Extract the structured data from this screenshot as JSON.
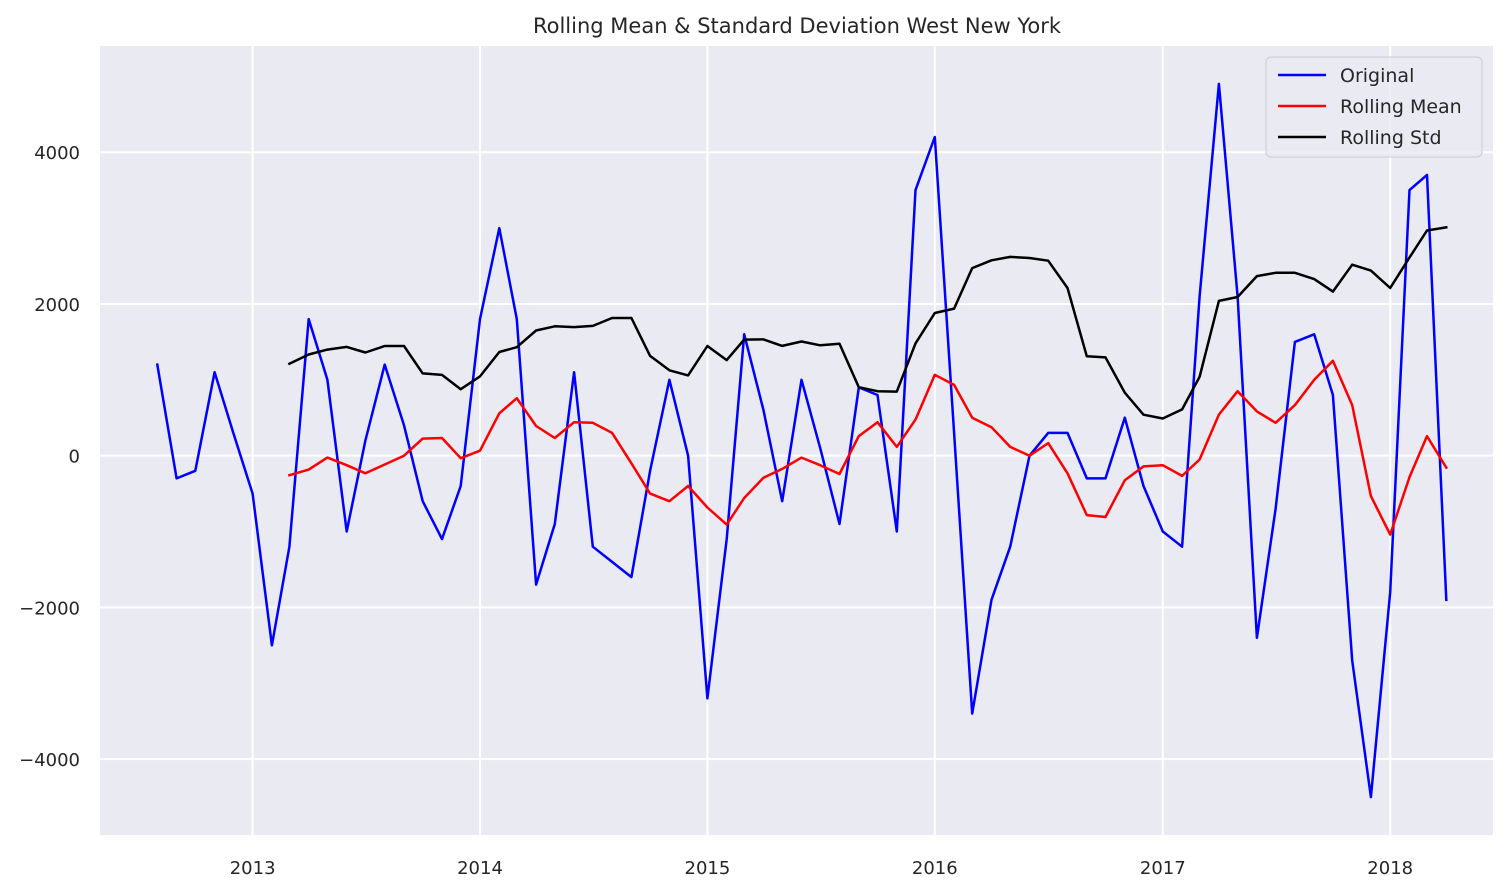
{
  "chart_data": {
    "type": "line",
    "title": "Rolling Mean & Standard Deviation West New York",
    "xlabel": "",
    "ylabel": "",
    "x_start": "2012-08",
    "x_step": "month",
    "xlim": [
      "2012-05-01",
      "2018-06-15"
    ],
    "ylim": [
      -5000,
      5400
    ],
    "x_ticks": [
      "2013",
      "2014",
      "2015",
      "2016",
      "2017",
      "2018"
    ],
    "y_ticks": [
      -4000,
      -2000,
      0,
      2000,
      4000
    ],
    "y_tick_labels": [
      "−4000",
      "−2000",
      "0",
      "2000",
      "4000"
    ],
    "grid": true,
    "legend_position": "top-right",
    "series": [
      {
        "name": "Original",
        "color": "#0000ff",
        "values": [
          1200,
          -300,
          -200,
          1100,
          300,
          -500,
          -2500,
          -1200,
          1800,
          1000,
          -1000,
          200,
          1200,
          400,
          -600,
          -1100,
          -400,
          1800,
          3000,
          1800,
          -1700,
          -900,
          1100,
          -1200,
          -1400,
          -1600,
          -200,
          1000,
          0,
          -3200,
          -1100,
          1600,
          600,
          -600,
          1000,
          100,
          -900,
          900,
          800,
          -1000,
          3500,
          4200,
          300,
          -3400,
          -1900,
          -1200,
          0,
          300,
          300,
          -300,
          -300,
          500,
          -400,
          -1000,
          -1200,
          2100,
          4900,
          2100,
          -2400,
          -700,
          1500,
          1600,
          800,
          -2700,
          -4500,
          -1800,
          3500,
          3700,
          -1900
        ]
      },
      {
        "name": "Rolling Mean",
        "color": "#ff0000",
        "values": [
          null,
          null,
          null,
          null,
          null,
          null,
          null,
          -258,
          -183,
          -25,
          -125,
          -233,
          -116,
          0,
          225,
          233,
          -33,
          66,
          558,
          758,
          391,
          233,
          441,
          433,
          300,
          -100,
          -500,
          -600,
          -400,
          -683,
          -908,
          -558,
          -291,
          -175,
          -25,
          -125,
          -241,
          258,
          441,
          116,
          475,
          1066,
          933,
          500,
          375,
          116,
          0,
          166,
          -233,
          -783,
          -808,
          -325,
          -141,
          -125,
          -266,
          -50,
          541,
          850,
          583,
          433,
          666,
          1000,
          1250,
          666,
          -533,
          -1041,
          -283,
          258,
          -158
        ]
      },
      {
        "name": "Rolling Std",
        "color": "#000000",
        "values": [
          null,
          null,
          null,
          null,
          null,
          null,
          null,
          1212,
          1333,
          1398,
          1434,
          1360,
          1445,
          1445,
          1085,
          1065,
          876,
          1045,
          1367,
          1430,
          1650,
          1705,
          1695,
          1710,
          1815,
          1815,
          1315,
          1125,
          1058,
          1446,
          1260,
          1530,
          1532,
          1447,
          1505,
          1455,
          1475,
          902,
          850,
          845,
          1480,
          1880,
          1938,
          2472,
          2575,
          2620,
          2605,
          2570,
          2210,
          1310,
          1295,
          830,
          540,
          490,
          610,
          1040,
          2040,
          2092,
          2367,
          2410,
          2410,
          2328,
          2163,
          2517,
          2440,
          2210,
          2612,
          2968,
          3010
        ]
      }
    ]
  }
}
